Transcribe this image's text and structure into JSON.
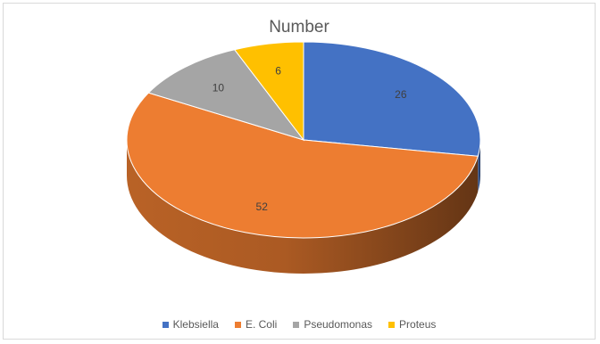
{
  "chart_data": {
    "type": "pie",
    "title": "Number",
    "style": "3d",
    "legend_position": "bottom",
    "series": [
      {
        "values": [
          26,
          52,
          10,
          6
        ]
      }
    ],
    "categories": [
      "Klebsiella",
      "E. Coli",
      "Pseudomonas",
      "Proteus"
    ],
    "colors": [
      "#4472c4",
      "#ed7d31",
      "#a5a5a5",
      "#ffc000"
    ],
    "data_labels": [
      "26",
      "52",
      "10",
      "6"
    ]
  }
}
